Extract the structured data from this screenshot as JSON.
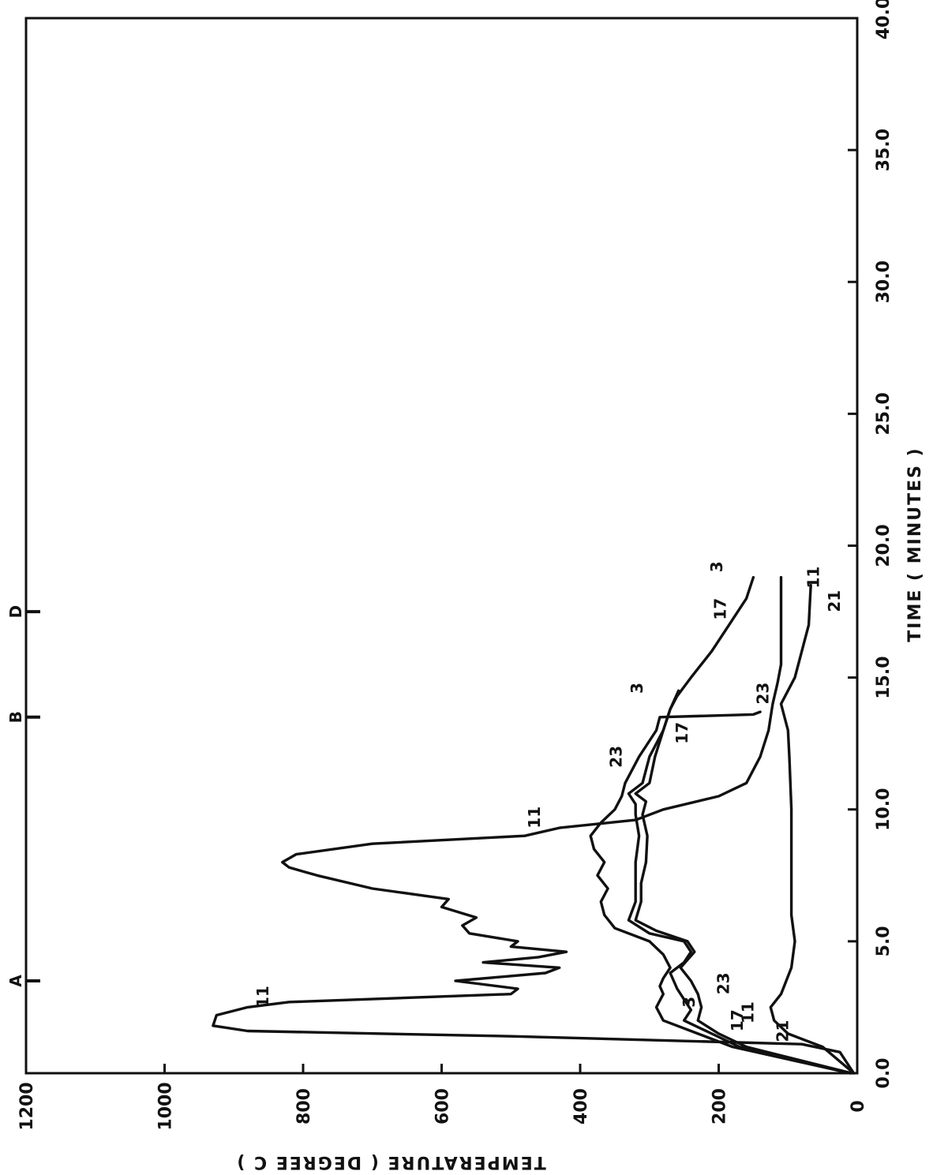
{
  "chart_data": {
    "type": "line",
    "title": "",
    "xlabel": "TIME ( MINUTES )",
    "ylabel": "TEMPERATURE ( DEGREE C )",
    "xlim": [
      0,
      40
    ],
    "ylim": [
      0,
      1200
    ],
    "x_ticks": [
      "0.0",
      "5.0",
      "10.0",
      "15.0",
      "20.0",
      "25.0",
      "30.0",
      "35.0",
      "40.0"
    ],
    "y_ticks": [
      "0",
      "200",
      "400",
      "600",
      "800",
      "1000",
      "1200"
    ],
    "grid": false,
    "orientation": "rotated 90 degrees clockwise",
    "event_markers": [
      {
        "label": "A",
        "x": 3.5
      },
      {
        "label": "B",
        "x": 13.5
      },
      {
        "label": "D",
        "x": 17.5
      }
    ],
    "series": [
      {
        "name": "11",
        "points": [
          [
            0,
            5
          ],
          [
            0.8,
            25
          ],
          [
            1.1,
            80
          ],
          [
            1.4,
            500
          ],
          [
            1.6,
            880
          ],
          [
            1.8,
            930
          ],
          [
            2.2,
            925
          ],
          [
            2.5,
            880
          ],
          [
            2.7,
            820
          ],
          [
            3.0,
            500
          ],
          [
            3.2,
            490
          ],
          [
            3.5,
            580
          ],
          [
            3.8,
            450
          ],
          [
            4.0,
            430
          ],
          [
            4.2,
            540
          ],
          [
            4.4,
            460
          ],
          [
            4.6,
            420
          ],
          [
            4.8,
            500
          ],
          [
            5.0,
            490
          ],
          [
            5.3,
            560
          ],
          [
            5.6,
            570
          ],
          [
            5.9,
            550
          ],
          [
            6.3,
            600
          ],
          [
            6.6,
            590
          ],
          [
            7.0,
            700
          ],
          [
            7.5,
            780
          ],
          [
            7.8,
            820
          ],
          [
            8.0,
            830
          ],
          [
            8.3,
            810
          ],
          [
            8.7,
            700
          ],
          [
            9.0,
            480
          ],
          [
            9.3,
            430
          ],
          [
            9.6,
            320
          ],
          [
            10.0,
            280
          ],
          [
            10.5,
            200
          ],
          [
            11.0,
            160
          ],
          [
            12.0,
            140
          ],
          [
            13.0,
            128
          ],
          [
            14.0,
            122
          ],
          [
            14.8,
            115
          ],
          [
            15.5,
            110
          ],
          [
            17.0,
            110
          ],
          [
            18.8,
            110
          ]
        ]
      },
      {
        "name": "17",
        "points": [
          [
            0,
            10
          ],
          [
            1.0,
            170
          ],
          [
            1.5,
            210
          ],
          [
            2.0,
            250
          ],
          [
            2.4,
            240
          ],
          [
            2.8,
            250
          ],
          [
            3.2,
            260
          ],
          [
            3.8,
            270
          ],
          [
            4.2,
            250
          ],
          [
            4.6,
            240
          ],
          [
            5.0,
            250
          ],
          [
            5.3,
            300
          ],
          [
            5.8,
            330
          ],
          [
            6.5,
            320
          ],
          [
            7.0,
            320
          ],
          [
            8.0,
            320
          ],
          [
            9.0,
            315
          ],
          [
            9.8,
            320
          ],
          [
            10.2,
            320
          ],
          [
            10.6,
            330
          ],
          [
            11.0,
            310
          ],
          [
            12.0,
            300
          ],
          [
            13.0,
            280
          ],
          [
            13.8,
            270
          ],
          [
            14.3,
            260
          ],
          [
            15.0,
            240
          ],
          [
            16.0,
            210
          ],
          [
            17.0,
            185
          ],
          [
            18.0,
            160
          ],
          [
            18.8,
            150
          ]
        ]
      },
      {
        "name": "3",
        "points": [
          [
            0,
            8
          ],
          [
            1.0,
            160
          ],
          [
            1.5,
            200
          ],
          [
            2.0,
            230
          ],
          [
            2.5,
            225
          ],
          [
            3.0,
            230
          ],
          [
            3.5,
            240
          ],
          [
            4.0,
            255
          ],
          [
            4.3,
            245
          ],
          [
            4.6,
            235
          ],
          [
            5.0,
            245
          ],
          [
            5.4,
            290
          ],
          [
            5.8,
            320
          ],
          [
            6.5,
            312
          ],
          [
            7.2,
            312
          ],
          [
            8.0,
            305
          ],
          [
            9.0,
            303
          ],
          [
            9.8,
            310
          ],
          [
            10.3,
            305
          ],
          [
            10.6,
            320
          ],
          [
            11.0,
            300
          ],
          [
            12.0,
            292
          ],
          [
            13.0,
            280
          ],
          [
            13.8,
            270
          ],
          [
            14.5,
            258
          ]
        ]
      },
      {
        "name": "23",
        "points": [
          [
            0,
            10
          ],
          [
            1.0,
            180
          ],
          [
            1.5,
            230
          ],
          [
            2.0,
            280
          ],
          [
            2.5,
            290
          ],
          [
            3.0,
            280
          ],
          [
            3.3,
            285
          ],
          [
            3.6,
            280
          ],
          [
            4.0,
            270
          ],
          [
            4.5,
            280
          ],
          [
            5.0,
            300
          ],
          [
            5.5,
            350
          ],
          [
            6.0,
            365
          ],
          [
            6.5,
            370
          ],
          [
            7.0,
            360
          ],
          [
            7.5,
            375
          ],
          [
            8.0,
            365
          ],
          [
            8.5,
            380
          ],
          [
            9.0,
            385
          ],
          [
            9.5,
            370
          ],
          [
            10.0,
            350
          ],
          [
            10.5,
            340
          ],
          [
            11.0,
            335
          ],
          [
            12.0,
            315
          ],
          [
            13.0,
            290
          ],
          [
            13.5,
            285
          ],
          [
            13.6,
            150
          ],
          [
            13.7,
            140
          ]
        ]
      },
      {
        "name": "21",
        "points": [
          [
            0,
            5
          ],
          [
            1.0,
            50
          ],
          [
            1.5,
            100
          ],
          [
            2.0,
            120
          ],
          [
            2.5,
            125
          ],
          [
            3.0,
            110
          ],
          [
            4.0,
            95
          ],
          [
            5.0,
            90
          ],
          [
            6.0,
            95
          ],
          [
            8.0,
            95
          ],
          [
            10.0,
            95
          ],
          [
            12.0,
            98
          ],
          [
            13.0,
            100
          ],
          [
            14.0,
            110
          ],
          [
            15.0,
            90
          ],
          [
            16.0,
            80
          ],
          [
            17.0,
            70
          ],
          [
            18.0,
            68
          ],
          [
            18.5,
            67
          ]
        ]
      }
    ],
    "curve_labels": [
      {
        "text": "11",
        "x": 2.9,
        "y": 850
      },
      {
        "text": "17",
        "x": 2.0,
        "y": 165
      },
      {
        "text": "3",
        "x": 2.7,
        "y": 235
      },
      {
        "text": "23",
        "x": 3.4,
        "y": 185
      },
      {
        "text": "11",
        "x": 2.3,
        "y": 150
      },
      {
        "text": "21",
        "x": 1.6,
        "y": 100
      },
      {
        "text": "11",
        "x": 9.7,
        "y": 458
      },
      {
        "text": "23",
        "x": 12.0,
        "y": 340
      },
      {
        "text": "17",
        "x": 12.9,
        "y": 245
      },
      {
        "text": "3",
        "x": 14.6,
        "y": 310
      },
      {
        "text": "23",
        "x": 14.4,
        "y": 128
      },
      {
        "text": "17",
        "x": 17.6,
        "y": 190
      },
      {
        "text": "3",
        "x": 19.2,
        "y": 195
      },
      {
        "text": "11",
        "x": 18.8,
        "y": 55
      },
      {
        "text": "21",
        "x": 17.9,
        "y": 25
      }
    ]
  }
}
